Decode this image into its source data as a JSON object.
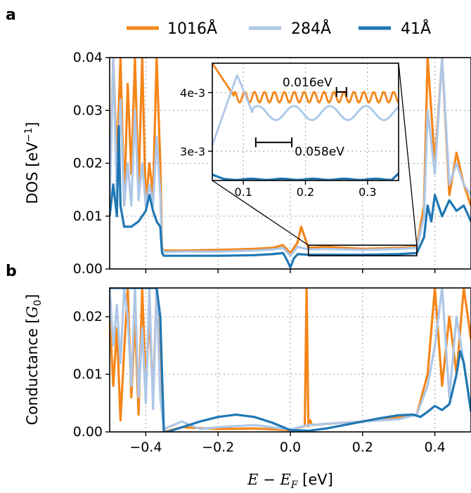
{
  "panel_a_letter": "a",
  "panel_b_letter": "b",
  "colors": {
    "1016": "#f58518",
    "284": "#aec7e8",
    "41": "#1f77b4"
  },
  "chart_data": [
    {
      "type": "line",
      "panel": "a",
      "title": "",
      "ylabel_main": "DOS ",
      "ylabel_unit": "[eV",
      "ylabel_sup": "−1",
      "ylabel_end": "]",
      "xlim": [
        -0.5,
        0.5
      ],
      "ylim": [
        0,
        0.04
      ],
      "grid": true,
      "yticks": [
        {
          "v": 0.0,
          "label": "0.00"
        },
        {
          "v": 0.01,
          "label": "0.01"
        },
        {
          "v": 0.02,
          "label": "0.02"
        },
        {
          "v": 0.03,
          "label": "0.03"
        },
        {
          "v": 0.04,
          "label": "0.04"
        }
      ],
      "xgrid": [
        -0.4,
        -0.2,
        0.0,
        0.2,
        0.4
      ],
      "legend": {
        "placement": "top",
        "entries": [
          "1016Å",
          "284Å",
          "41Å"
        ]
      },
      "series": [
        {
          "name": "1016Å",
          "key": "1016",
          "x": [
            -0.5,
            -0.49,
            -0.48,
            -0.47,
            -0.46,
            -0.45,
            -0.44,
            -0.43,
            -0.42,
            -0.41,
            -0.4,
            -0.39,
            -0.38,
            -0.37,
            -0.36,
            -0.355,
            -0.35,
            -0.3,
            -0.2,
            -0.1,
            -0.05,
            -0.02,
            0.0,
            0.02,
            0.03,
            0.05,
            0.1,
            0.2,
            0.3,
            0.35,
            0.37,
            0.38,
            0.4,
            0.42,
            0.44,
            0.46,
            0.48,
            0.5
          ],
          "y": [
            0.016,
            0.04,
            0.02,
            0.04,
            0.012,
            0.035,
            0.018,
            0.04,
            0.015,
            0.04,
            0.012,
            0.02,
            0.014,
            0.04,
            0.02,
            0.004,
            0.0035,
            0.0035,
            0.0036,
            0.0038,
            0.004,
            0.0045,
            0.003,
            0.005,
            0.008,
            0.004,
            0.0042,
            0.0038,
            0.004,
            0.0042,
            0.012,
            0.04,
            0.02,
            0.04,
            0.014,
            0.022,
            0.016,
            0.012
          ]
        },
        {
          "name": "284Å",
          "key": "284",
          "x": [
            -0.5,
            -0.49,
            -0.48,
            -0.47,
            -0.46,
            -0.45,
            -0.44,
            -0.43,
            -0.42,
            -0.41,
            -0.4,
            -0.39,
            -0.38,
            -0.37,
            -0.36,
            -0.355,
            -0.35,
            -0.3,
            -0.2,
            -0.1,
            -0.05,
            -0.02,
            0.0,
            0.02,
            0.05,
            0.1,
            0.2,
            0.3,
            0.35,
            0.37,
            0.38,
            0.4,
            0.42,
            0.44,
            0.46,
            0.48,
            0.5
          ],
          "y": [
            0.012,
            0.04,
            0.014,
            0.032,
            0.012,
            0.02,
            0.012,
            0.03,
            0.013,
            0.02,
            0.012,
            0.016,
            0.012,
            0.025,
            0.014,
            0.004,
            0.0032,
            0.0033,
            0.0033,
            0.0035,
            0.0037,
            0.004,
            0.0025,
            0.0042,
            0.0037,
            0.0038,
            0.0036,
            0.0038,
            0.004,
            0.01,
            0.03,
            0.018,
            0.04,
            0.016,
            0.02,
            0.016,
            0.014
          ]
        },
        {
          "name": "41Å",
          "key": "41",
          "x": [
            -0.5,
            -0.49,
            -0.48,
            -0.475,
            -0.47,
            -0.46,
            -0.44,
            -0.42,
            -0.4,
            -0.39,
            -0.38,
            -0.37,
            -0.36,
            -0.355,
            -0.35,
            -0.3,
            -0.2,
            -0.1,
            -0.05,
            -0.02,
            -0.01,
            0.0,
            0.01,
            0.02,
            0.05,
            0.1,
            0.2,
            0.3,
            0.35,
            0.37,
            0.38,
            0.39,
            0.4,
            0.42,
            0.44,
            0.46,
            0.48,
            0.5
          ],
          "y": [
            0.01,
            0.016,
            0.01,
            0.027,
            0.012,
            0.008,
            0.008,
            0.009,
            0.011,
            0.014,
            0.011,
            0.009,
            0.008,
            0.003,
            0.0025,
            0.0025,
            0.0025,
            0.0026,
            0.0028,
            0.003,
            0.0018,
            0.0003,
            0.002,
            0.0028,
            0.0027,
            0.0027,
            0.0027,
            0.0028,
            0.003,
            0.006,
            0.012,
            0.009,
            0.014,
            0.01,
            0.013,
            0.011,
            0.012,
            0.009
          ]
        }
      ],
      "inset": {
        "xlim": [
          0.05,
          0.35
        ],
        "ylim": [
          0.0025,
          0.0045
        ],
        "xticks": [
          {
            "v": 0.1,
            "label": "0.1"
          },
          {
            "v": 0.2,
            "label": "0.2"
          },
          {
            "v": 0.3,
            "label": "0.3"
          }
        ],
        "yticks": [
          {
            "v": 0.003,
            "label": "3e-3"
          },
          {
            "v": 0.004,
            "label": "4e-3"
          }
        ],
        "annotations": [
          {
            "label": "0.016eV",
            "x1": 0.25,
            "x2": 0.266,
            "y": 0.00401
          },
          {
            "label": "0.058eV",
            "x1": 0.12,
            "x2": 0.178,
            "y": 0.00315
          }
        ]
      }
    },
    {
      "type": "line",
      "panel": "b",
      "title": "",
      "ylabel_main": "Conductance ",
      "ylabel_unit_open": "[",
      "ylabel_G": "G",
      "ylabel_sub": "0",
      "ylabel_unit_close": "]",
      "xlabel_E": "E",
      "xlabel_minus": " − ",
      "xlabel_EF": "E",
      "xlabel_F": "F",
      "xlabel_unit": " [eV]",
      "xlim": [
        -0.5,
        0.5
      ],
      "ylim": [
        0,
        0.025
      ],
      "grid": true,
      "xticks": [
        {
          "v": -0.4,
          "label": "−0.4"
        },
        {
          "v": -0.2,
          "label": "−0.2"
        },
        {
          "v": 0.0,
          "label": "0.0"
        },
        {
          "v": 0.2,
          "label": "0.2"
        },
        {
          "v": 0.4,
          "label": "0.4"
        }
      ],
      "yticks": [
        {
          "v": 0.0,
          "label": "0.00"
        },
        {
          "v": 0.01,
          "label": "0.01"
        },
        {
          "v": 0.02,
          "label": "0.02"
        }
      ],
      "series": [
        {
          "name": "1016Å",
          "key": "1016",
          "x": [
            -0.5,
            -0.49,
            -0.48,
            -0.47,
            -0.46,
            -0.45,
            -0.44,
            -0.43,
            -0.42,
            -0.41,
            -0.4,
            -0.39,
            -0.38,
            -0.37,
            -0.36,
            -0.35,
            -0.3,
            -0.2,
            -0.1,
            0.0,
            0.04,
            0.045,
            0.05,
            0.055,
            0.06,
            0.1,
            0.2,
            0.3,
            0.35,
            0.38,
            0.4,
            0.42,
            0.44,
            0.46,
            0.48,
            0.5
          ],
          "y": [
            0.02,
            0.008,
            0.018,
            0.002,
            0.014,
            0.025,
            0.006,
            0.02,
            0.003,
            0.025,
            0.008,
            0.02,
            0.006,
            0.025,
            0.01,
            0.0,
            0.0008,
            0.0005,
            0.0006,
            0.0003,
            0.001,
            0.025,
            0.001,
            0.002,
            0.0012,
            0.0014,
            0.0018,
            0.0025,
            0.003,
            0.01,
            0.025,
            0.008,
            0.02,
            0.01,
            0.025,
            0.016
          ]
        },
        {
          "name": "284Å",
          "key": "284",
          "x": [
            -0.5,
            -0.49,
            -0.48,
            -0.47,
            -0.46,
            -0.45,
            -0.44,
            -0.43,
            -0.42,
            -0.41,
            -0.4,
            -0.39,
            -0.38,
            -0.37,
            -0.36,
            -0.35,
            -0.3,
            -0.25,
            -0.2,
            -0.1,
            0.0,
            0.05,
            0.1,
            0.2,
            0.3,
            0.35,
            0.38,
            0.4,
            0.42,
            0.44,
            0.46,
            0.48,
            0.5
          ],
          "y": [
            0.025,
            0.015,
            0.022,
            0.012,
            0.025,
            0.02,
            0.008,
            0.025,
            0.006,
            0.018,
            0.005,
            0.025,
            0.004,
            0.025,
            0.006,
            0.0005,
            0.0018,
            0.0005,
            0.0008,
            0.0012,
            0.0004,
            0.0012,
            0.0014,
            0.0018,
            0.0022,
            0.003,
            0.008,
            0.015,
            0.025,
            0.006,
            0.02,
            0.012,
            0.004
          ]
        },
        {
          "name": "41Å",
          "key": "41",
          "x": [
            -0.5,
            -0.48,
            -0.46,
            -0.44,
            -0.42,
            -0.4,
            -0.38,
            -0.37,
            -0.36,
            -0.35,
            -0.34,
            -0.3,
            -0.25,
            -0.2,
            -0.15,
            -0.1,
            -0.05,
            0.0,
            0.05,
            0.1,
            0.15,
            0.2,
            0.25,
            0.3,
            0.34,
            0.36,
            0.38,
            0.4,
            0.42,
            0.44,
            0.46,
            0.47,
            0.48,
            0.5
          ],
          "y": [
            0.025,
            0.025,
            0.025,
            0.025,
            0.025,
            0.025,
            0.025,
            0.025,
            0.02,
            0.0,
            0.0,
            0.0008,
            0.0018,
            0.0026,
            0.003,
            0.0026,
            0.0016,
            0.0003,
            0.0002,
            0.0006,
            0.0012,
            0.0018,
            0.0024,
            0.0029,
            0.003,
            0.0026,
            0.0035,
            0.0045,
            0.0038,
            0.0048,
            0.01,
            0.014,
            0.012,
            0.0035
          ]
        }
      ]
    }
  ]
}
